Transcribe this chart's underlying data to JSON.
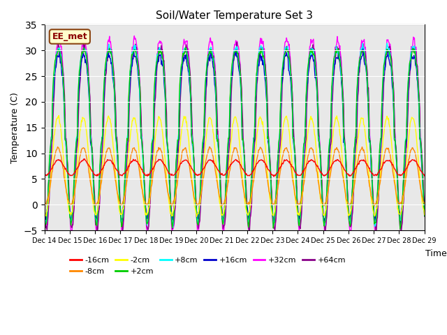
{
  "title": "Soil/Water Temperature Set 3",
  "xlabel": "Time",
  "ylabel": "Temperature (C)",
  "ylim": [
    -5,
    35
  ],
  "annotation": "EE_met",
  "background_color": "#e8e8e8",
  "series": [
    {
      "label": "-16cm",
      "color": "#ff0000"
    },
    {
      "label": "-8cm",
      "color": "#ff8800"
    },
    {
      "label": "-2cm",
      "color": "#ffff00"
    },
    {
      "label": "+2cm",
      "color": "#00cc00"
    },
    {
      "label": "+8cm",
      "color": "#00ffff"
    },
    {
      "label": "+16cm",
      "color": "#0000cc"
    },
    {
      "label": "+32cm",
      "color": "#ff00ff"
    },
    {
      "label": "+64cm",
      "color": "#880088"
    }
  ],
  "xtick_labels": [
    "Dec 14",
    "Dec 15",
    "Dec 16",
    "Dec 17",
    "Dec 18",
    "Dec 19",
    "Dec 20",
    "Dec 21",
    "Dec 22",
    "Dec 23",
    "Dec 24",
    "Dec 25",
    "Dec 26",
    "Dec 27",
    "Dec 28",
    "Dec 29"
  ],
  "n_days": 15,
  "points_per_day": 48
}
